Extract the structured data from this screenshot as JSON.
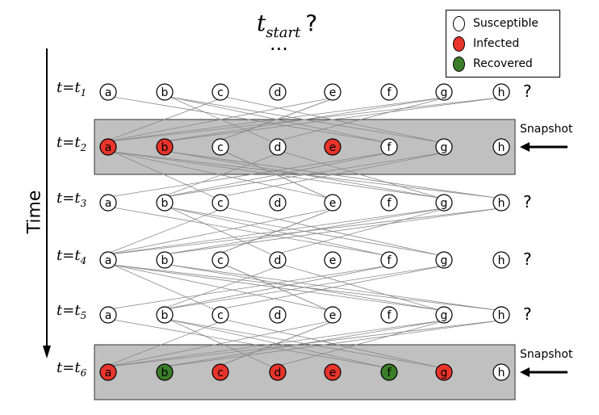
{
  "title": {
    "main": "t",
    "sub": "start",
    "question": "?",
    "ellipsis": "..."
  },
  "time_axis_label": "Time",
  "legend": [
    {
      "label": "Susceptible",
      "color": "#ffffff",
      "state": "S"
    },
    {
      "label": "Infected",
      "color": "#e8342b",
      "state": "I"
    },
    {
      "label": "Recovered",
      "color": "#3b7d2a",
      "state": "R"
    }
  ],
  "node_labels": [
    "a",
    "b",
    "c",
    "d",
    "e",
    "f",
    "g",
    "h"
  ],
  "rows": [
    {
      "label": "t=t",
      "sub": "1",
      "snapshot": false,
      "unknown_marker": "?",
      "states": [
        "S",
        "S",
        "S",
        "S",
        "S",
        "S",
        "S",
        "S"
      ]
    },
    {
      "label": "t=t",
      "sub": "2",
      "snapshot": true,
      "snapshot_label": "Snapshot",
      "states": [
        "I",
        "I",
        "S",
        "S",
        "I",
        "S",
        "S",
        "S"
      ]
    },
    {
      "label": "t=t",
      "sub": "3",
      "snapshot": false,
      "unknown_marker": "?",
      "states": [
        "S",
        "S",
        "S",
        "S",
        "S",
        "S",
        "S",
        "S"
      ]
    },
    {
      "label": "t=t",
      "sub": "4",
      "snapshot": false,
      "unknown_marker": "?",
      "states": [
        "S",
        "S",
        "S",
        "S",
        "S",
        "S",
        "S",
        "S"
      ]
    },
    {
      "label": "t=t",
      "sub": "5",
      "snapshot": false,
      "unknown_marker": "?",
      "states": [
        "S",
        "S",
        "S",
        "S",
        "S",
        "S",
        "S",
        "S"
      ]
    },
    {
      "label": "t=t",
      "sub": "6",
      "snapshot": true,
      "snapshot_label": "Snapshot",
      "states": [
        "I",
        "R",
        "I",
        "I",
        "I",
        "R",
        "I",
        "S"
      ]
    }
  ],
  "colors": {
    "susceptible": "#ffffff",
    "infected": "#e8342b",
    "recovered": "#3b7d2a",
    "snapshot_band": "#c0c0c0",
    "edge": "#888888"
  },
  "edges": [
    [
      "a",
      "g"
    ],
    [
      "a",
      "f"
    ],
    [
      "b",
      "h"
    ],
    [
      "b",
      "g"
    ],
    [
      "c",
      "e"
    ],
    [
      "c",
      "a"
    ],
    [
      "d",
      "b"
    ],
    [
      "e",
      "c"
    ],
    [
      "f",
      "b"
    ],
    [
      "g",
      "b"
    ],
    [
      "g",
      "c"
    ],
    [
      "h",
      "a"
    ],
    [
      "d",
      "g"
    ],
    [
      "e",
      "a"
    ]
  ]
}
